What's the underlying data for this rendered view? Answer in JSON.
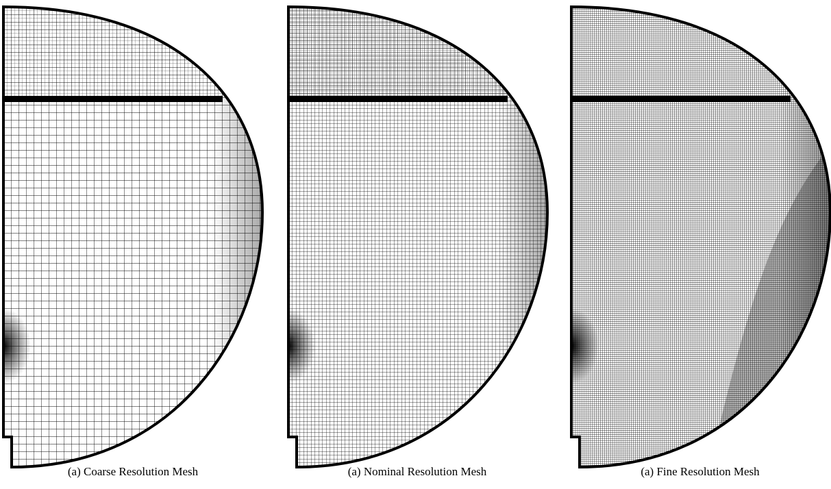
{
  "panels": [
    {
      "caption": "(a) Coarse Resolution Mesh"
    },
    {
      "caption": "(a) Nominal Resolution Mesh"
    },
    {
      "caption": "(a) Fine Resolution Mesh"
    }
  ]
}
